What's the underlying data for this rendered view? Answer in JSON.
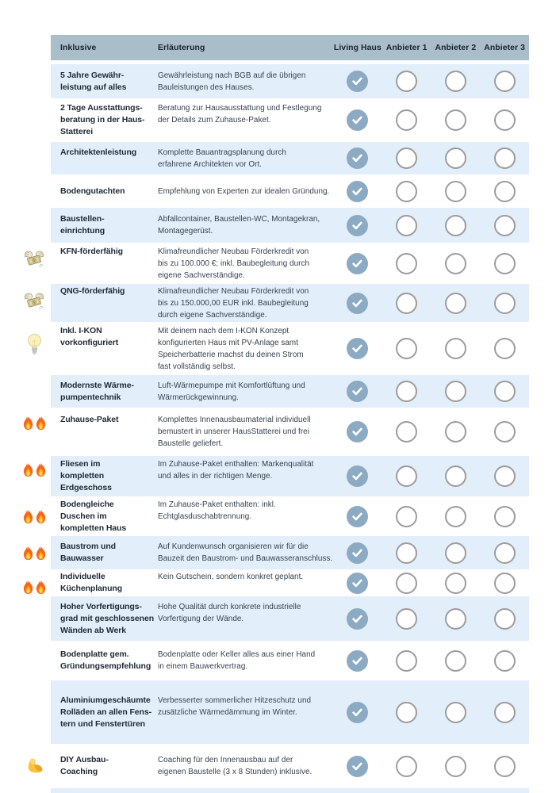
{
  "colors": {
    "header_bg": "#a9bec9",
    "header_text": "#18242f",
    "row_alt_bg": "#e2eefa",
    "feature_text": "#202c38",
    "desc_text": "#36424f",
    "check_fill": "#8caac2",
    "check_mark": "#ffffff",
    "circle_stroke": "#9c9c9c"
  },
  "table": {
    "columns": {
      "feature": "Inklusive",
      "description": "Erläuterung",
      "providers": [
        "Living Haus",
        "Anbieter 1",
        "Anbieter 2",
        "Anbieter 3"
      ]
    },
    "rows": [
      {
        "icon": null,
        "icon_count": 0,
        "feature": "5 Jahre Gewähr-\nleistung auf alles",
        "description": "Gewährleistung nach BGB auf die übrigen\nBauleistungen des Hauses.",
        "checks": [
          true,
          false,
          false,
          false
        ]
      },
      {
        "icon": null,
        "icon_count": 0,
        "feature": "2 Tage Ausstattungs-\nberatung in der Haus-\nStatterei",
        "description": "Beratung zur Hausausstattung und Festlegung\nder Details zum Zuhause-Paket.",
        "checks": [
          true,
          false,
          false,
          false
        ]
      },
      {
        "icon": null,
        "icon_count": 0,
        "feature": "Architektenleistung",
        "description": "Komplette Bauantragsplanung durch\nerfahrene Architekten vor Ort.",
        "checks": [
          true,
          false,
          false,
          false
        ]
      },
      {
        "icon": null,
        "icon_count": 0,
        "feature": "Bodengutachten",
        "description": "Empfehlung von Experten zur idealen Gründung.",
        "checks": [
          true,
          false,
          false,
          false
        ]
      },
      {
        "icon": null,
        "icon_count": 0,
        "feature": "Baustellen-\neinrichtung",
        "description": "Abfallcontainer, Baustellen-WC, Montagekran,\nMontagegerüst.",
        "checks": [
          true,
          false,
          false,
          false
        ]
      },
      {
        "icon": "money-with-wings",
        "icon_count": 1,
        "feature": "KFN-förderfähig",
        "description": "Klimafreundlicher Neubau Förderkredit von\nbis zu 100.000 €; inkl. Baubegleitung durch\neigene Sachverständige.",
        "checks": [
          true,
          false,
          false,
          false
        ]
      },
      {
        "icon": "money-with-wings",
        "icon_count": 1,
        "feature": "QNG-förderfähig",
        "description": "Klimafreundlicher Neubau Förderkredit von\nbis zu 150.000,00 EUR inkl. Baubegleitung\ndurch eigene Sachverständige.",
        "checks": [
          true,
          false,
          false,
          false
        ]
      },
      {
        "icon": "light-bulb",
        "icon_count": 1,
        "feature": "Inkl. I-KON\nvorkonfiguriert",
        "description": "Mit deinem nach dem I-KON Konzept\nkonfigurierten Haus mit PV-Anlage samt\nSpeicherbatterie machst du deinen Strom\nfast vollständig selbst.",
        "checks": [
          true,
          false,
          false,
          false
        ]
      },
      {
        "icon": null,
        "icon_count": 0,
        "feature": "Modernste Wärme-\npumpentechnik",
        "description": "Luft-Wärmepumpe mit Komfortlüftung und\nWärmerückgewinnung.",
        "checks": [
          true,
          false,
          false,
          false
        ]
      },
      {
        "icon": "fire",
        "icon_count": 2,
        "feature": "Zuhause-Paket",
        "description": "Komplettes Innenausbaumaterial individuell\nbemustert in unserer HausStatterei und frei\nBaustelle geliefert.",
        "checks": [
          true,
          false,
          false,
          false
        ]
      },
      {
        "icon": "fire",
        "icon_count": 2,
        "feature": "Fliesen im\nkompletten\nErdgeschoss",
        "description": "Im Zuhause-Paket enthalten: Markenqualität\nund alles in der richtigen Menge.",
        "checks": [
          true,
          false,
          false,
          false
        ]
      },
      {
        "icon": "fire",
        "icon_count": 2,
        "feature": "Bodengleiche\nDuschen im\nkompletten Haus",
        "description": "Im Zuhause-Paket enthalten: inkl.\nEchtglasduschabtrennung.",
        "checks": [
          true,
          false,
          false,
          false
        ]
      },
      {
        "icon": "fire",
        "icon_count": 2,
        "feature": "Baustrom und\nBauwasser",
        "description": "Auf Kundenwunsch organisieren wir für die\nBauzeit den Baustrom- und Bauwasseranschluss.",
        "checks": [
          true,
          false,
          false,
          false
        ]
      },
      {
        "icon": "fire",
        "icon_count": 2,
        "feature": "Individuelle\nKüchenplanung",
        "description": "Kein Gutschein, sondern konkret geplant.",
        "checks": [
          true,
          false,
          false,
          false
        ]
      },
      {
        "icon": null,
        "icon_count": 0,
        "feature": "Hoher Vorfertigungs-\ngrad mit geschlossenen\nWänden ab Werk",
        "description": "Hohe Qualität durch konkrete industrielle\nVorfertigung der Wände.",
        "checks": [
          true,
          false,
          false,
          false
        ]
      },
      {
        "icon": null,
        "icon_count": 0,
        "feature": "Bodenplatte gem.\nGründungsempfehlung",
        "description": "Bodenplatte oder Keller alles aus einer Hand\nin einem Bauwerkvertrag.",
        "checks": [
          true,
          false,
          false,
          false
        ]
      },
      {
        "icon": null,
        "icon_count": 0,
        "feature": "Aluminiumgeschäumte\nRolläden an allen Fens-\ntern und Fenstertüren",
        "description": "Verbesserter sommerlicher Hitzeschutz und\nzusätzliche Wärmedämmung im Winter.",
        "checks": [
          true,
          false,
          false,
          false
        ]
      },
      {
        "icon": "flexed-biceps",
        "icon_count": 1,
        "feature": "DIY Ausbau-\nCoaching",
        "description": "Coaching für den Innenausbau auf der\neigenen Baustelle (3 x 8 Stunden) inklusive.",
        "checks": [
          true,
          false,
          false,
          false
        ]
      }
    ]
  }
}
